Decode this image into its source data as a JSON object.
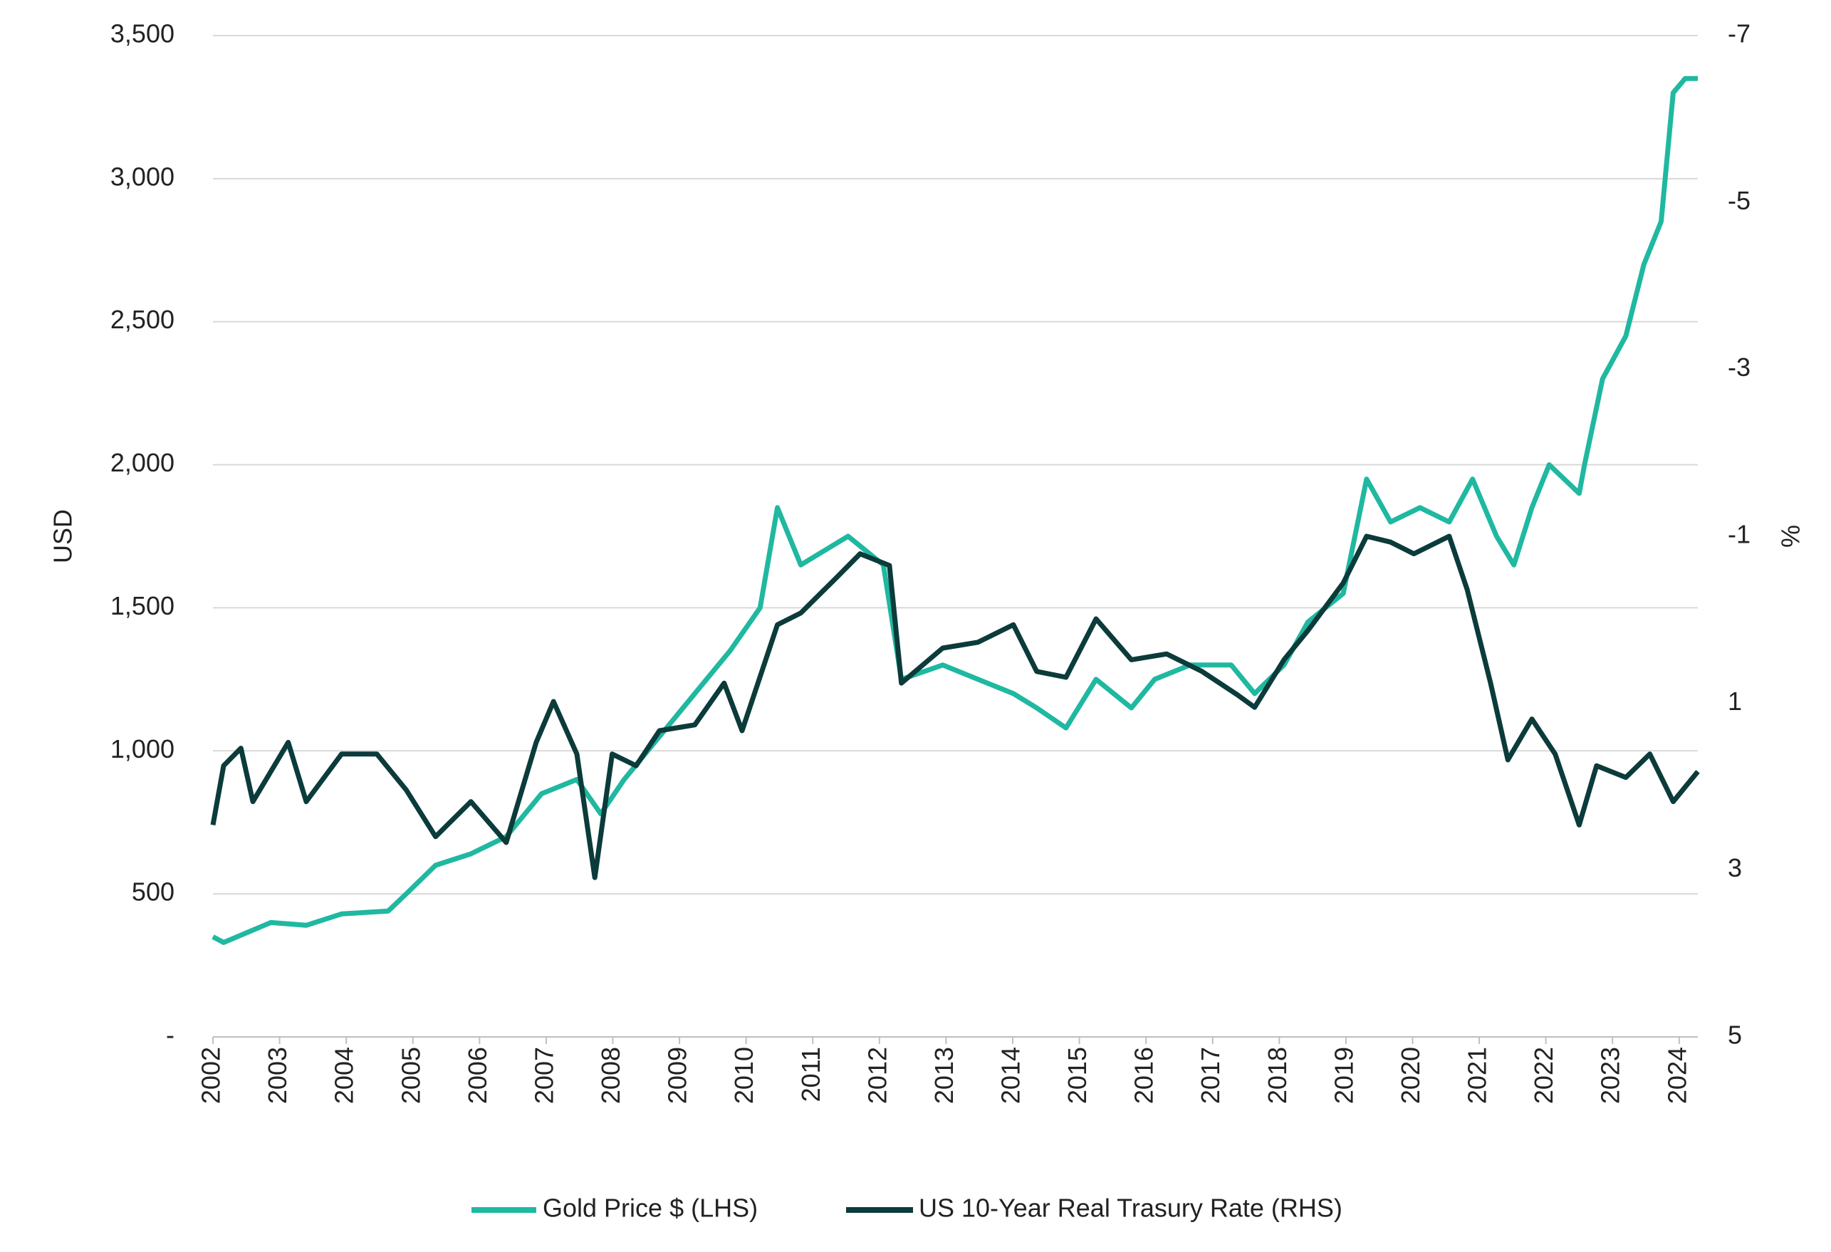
{
  "chart_data": {
    "type": "line",
    "ylabel": "USD",
    "y2label": "%",
    "xlim": [
      2002,
      2024.28
    ],
    "xticks": [
      2002,
      2003,
      2004,
      2005,
      2006,
      2007,
      2008,
      2009,
      2010,
      2011,
      2012,
      2013,
      2014,
      2015,
      2016,
      2017,
      2018,
      2019,
      2020,
      2021,
      2022,
      2023,
      2024
    ],
    "ylim": [
      0,
      3500
    ],
    "yticks": [
      {
        "value": 0,
        "label": "-"
      },
      500,
      {
        "value": 1000,
        "label": "1,000"
      },
      {
        "value": 1500,
        "label": "1,500"
      },
      {
        "value": 2000,
        "label": "2,000"
      },
      {
        "value": 2500,
        "label": "2,500"
      },
      {
        "value": 3000,
        "label": "3,000"
      },
      {
        "value": 3500,
        "label": "3,500"
      }
    ],
    "y2lim": [
      5,
      -7
    ],
    "y2ticks": [
      -7,
      -5,
      -3,
      -1,
      1,
      3,
      5
    ],
    "grid": true,
    "legend": "bottom",
    "series": [
      {
        "name": "Gold Price $ (LHS)",
        "color": "#1fb8a0",
        "x": [
          2002.0,
          2002.16,
          2002.87,
          2003.4,
          2003.93,
          2004.63,
          2004.9,
          2005.34,
          2005.87,
          2006.4,
          2006.93,
          2007.46,
          2007.82,
          2008.17,
          2008.7,
          2009.23,
          2009.76,
          2010.21,
          2010.47,
          2010.82,
          2011.53,
          2012.06,
          2012.33,
          2012.95,
          2013.48,
          2014.01,
          2014.36,
          2014.8,
          2015.25,
          2015.78,
          2016.13,
          2016.66,
          2017.28,
          2017.63,
          2018.07,
          2018.43,
          2018.96,
          2019.31,
          2019.67,
          2020.11,
          2020.55,
          2020.9,
          2021.26,
          2021.52,
          2021.79,
          2022.05,
          2022.5,
          2022.58,
          2022.85,
          2023.2,
          2023.47,
          2023.73,
          2023.91,
          2024.09,
          2024.28
        ],
        "values": [
          350,
          330,
          400,
          390,
          430,
          440,
          500,
          600,
          640,
          700,
          850,
          900,
          780,
          900,
          1050,
          1200,
          1350,
          1500,
          1850,
          1650,
          1750,
          1650,
          1250,
          1300,
          1250,
          1200,
          1150,
          1080,
          1250,
          1150,
          1250,
          1300,
          1300,
          1200,
          1300,
          1450,
          1550,
          1950,
          1800,
          1850,
          1800,
          1950,
          1750,
          1650,
          1850,
          2000,
          1900,
          2000,
          2300,
          2450,
          2700,
          2850,
          3300,
          3350,
          3350
        ]
      },
      {
        "name": "US 10-Year Real Trasury Rate (RHS)",
        "color": "#0b3b3a",
        "axis": "y2",
        "x": [
          2002.0,
          2002.16,
          2002.42,
          2002.6,
          2003.13,
          2003.4,
          2003.93,
          2004.46,
          2004.9,
          2005.34,
          2005.87,
          2006.4,
          2006.85,
          2007.11,
          2007.46,
          2007.73,
          2007.99,
          2008.35,
          2008.7,
          2009.23,
          2009.67,
          2009.94,
          2010.47,
          2010.82,
          2011.35,
          2011.71,
          2012.15,
          2012.33,
          2012.95,
          2013.48,
          2014.01,
          2014.36,
          2014.8,
          2015.25,
          2015.78,
          2016.31,
          2016.84,
          2017.37,
          2017.63,
          2018.07,
          2018.43,
          2018.96,
          2019.31,
          2019.67,
          2020.02,
          2020.55,
          2020.82,
          2021.17,
          2021.43,
          2021.79,
          2022.14,
          2022.5,
          2022.76,
          2023.2,
          2023.56,
          2023.91,
          2024.28
        ],
        "values": [
          2.46,
          1.75,
          1.54,
          2.18,
          1.47,
          2.18,
          1.61,
          1.61,
          2.04,
          2.6,
          2.18,
          2.67,
          1.47,
          0.98,
          1.61,
          3.09,
          1.61,
          1.75,
          1.33,
          1.26,
          0.76,
          1.33,
          0.06,
          -0.08,
          -0.5,
          -0.79,
          -0.65,
          0.76,
          0.34,
          0.27,
          0.06,
          0.62,
          0.69,
          -0.01,
          0.48,
          0.41,
          0.62,
          0.9,
          1.05,
          0.48,
          0.13,
          -0.44,
          -1.0,
          -0.93,
          -0.79,
          -1.0,
          -0.36,
          0.76,
          1.68,
          1.19,
          1.61,
          2.46,
          1.75,
          1.89,
          1.61,
          2.18,
          1.82
        ]
      }
    ]
  }
}
